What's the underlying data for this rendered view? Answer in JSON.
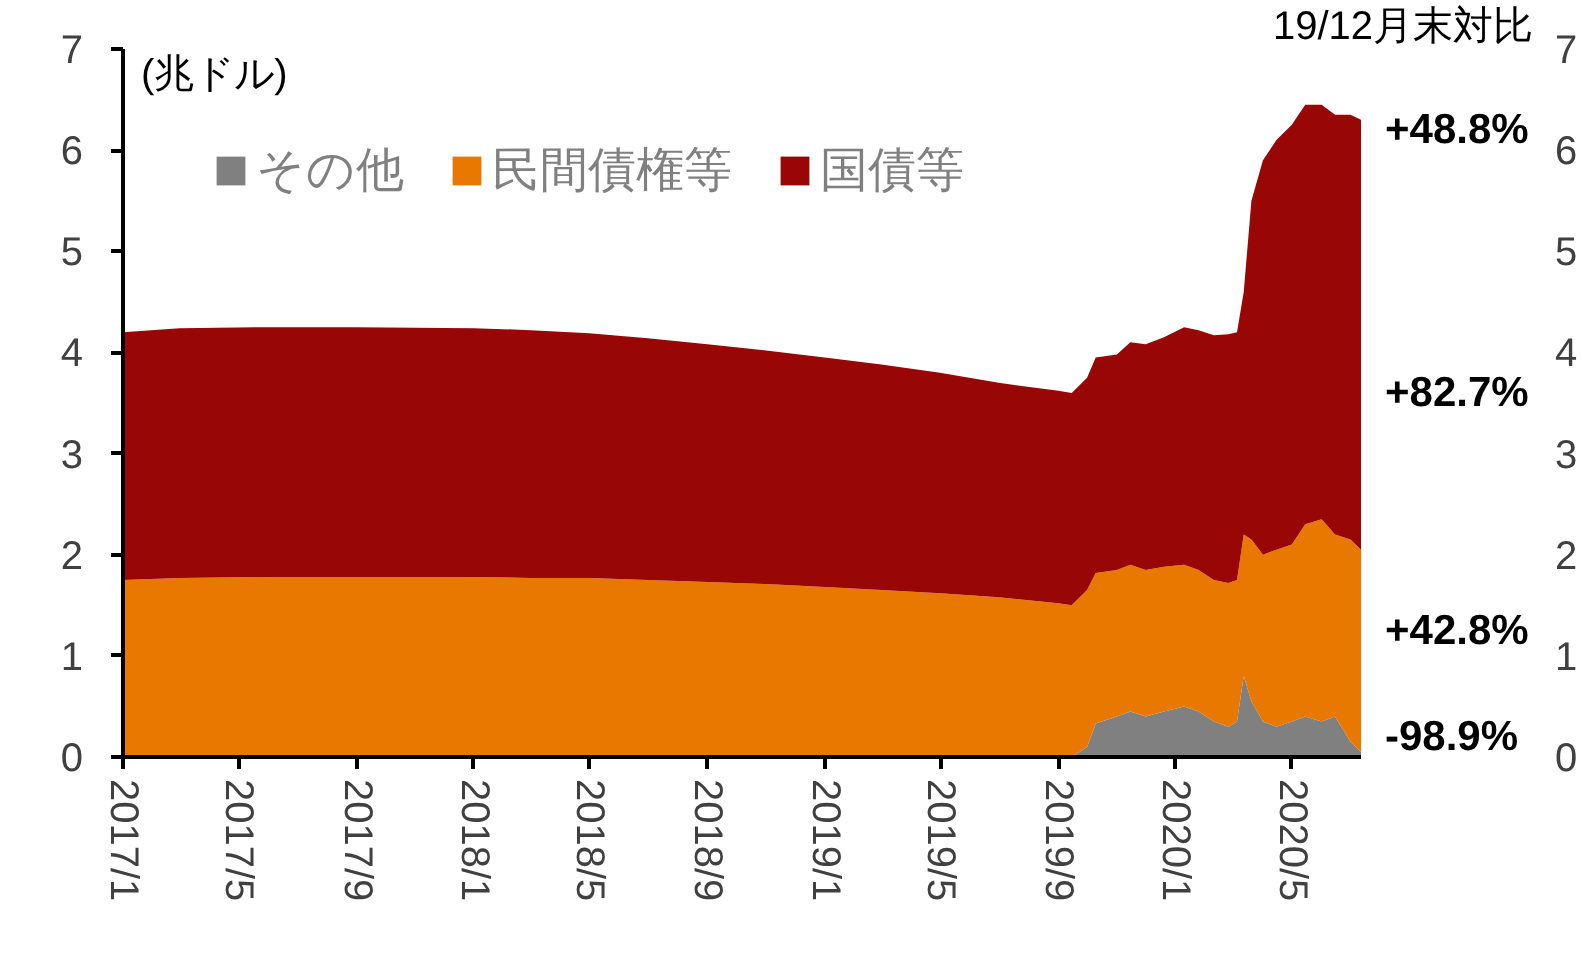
{
  "chart_data": {
    "type": "area",
    "stacked": true,
    "x": [
      "2017-01-01",
      "2017-03-01",
      "2017-06-01",
      "2017-09-01",
      "2018-01-01",
      "2018-03-01",
      "2018-05-01",
      "2018-07-01",
      "2018-09-01",
      "2018-11-01",
      "2019-01-01",
      "2019-03-01",
      "2019-05-01",
      "2019-07-01",
      "2019-09-01",
      "2019-09-15",
      "2019-10-01",
      "2019-10-10",
      "2019-11-01",
      "2019-11-15",
      "2019-12-01",
      "2019-12-20",
      "2020-01-10",
      "2020-01-25",
      "2020-02-10",
      "2020-02-25",
      "2020-03-05",
      "2020-03-12",
      "2020-03-20",
      "2020-04-01",
      "2020-04-15",
      "2020-05-01",
      "2020-05-15",
      "2020-06-01",
      "2020-06-15",
      "2020-07-01",
      "2020-07-12"
    ],
    "series": [
      {
        "name": "その他",
        "color": "#808080",
        "values": [
          0,
          0,
          0,
          0,
          0,
          0,
          0,
          0,
          0,
          0,
          0,
          0,
          0,
          0,
          0,
          0,
          0.1,
          0.33,
          0.4,
          0.45,
          0.4,
          0.45,
          0.5,
          0.45,
          0.35,
          0.3,
          0.35,
          0.8,
          0.55,
          0.35,
          0.3,
          0.35,
          0.4,
          0.35,
          0.4,
          0.15,
          0.05
        ]
      },
      {
        "name": "民間債権等",
        "color": "#e87800",
        "values": [
          1.75,
          1.77,
          1.78,
          1.78,
          1.78,
          1.77,
          1.77,
          1.75,
          1.73,
          1.71,
          1.68,
          1.65,
          1.62,
          1.58,
          1.52,
          1.5,
          1.55,
          1.49,
          1.45,
          1.45,
          1.45,
          1.43,
          1.4,
          1.4,
          1.4,
          1.42,
          1.4,
          1.4,
          1.6,
          1.65,
          1.75,
          1.75,
          1.9,
          2.0,
          1.8,
          2.0,
          2.0
        ]
      },
      {
        "name": "国債等",
        "color": "#990606",
        "values": [
          2.45,
          2.47,
          2.47,
          2.47,
          2.46,
          2.45,
          2.42,
          2.39,
          2.35,
          2.31,
          2.27,
          2.23,
          2.18,
          2.12,
          2.1,
          2.1,
          2.1,
          2.13,
          2.13,
          2.2,
          2.23,
          2.27,
          2.35,
          2.37,
          2.42,
          2.46,
          2.45,
          2.4,
          3.35,
          3.9,
          4.05,
          4.15,
          4.15,
          4.1,
          4.15,
          4.2,
          4.25
        ]
      }
    ],
    "xlim": [
      "2017-01-01",
      "2020-07-12"
    ],
    "xticks": [
      {
        "value": "2017-01-01",
        "label": "2017/1"
      },
      {
        "value": "2017-05-01",
        "label": "2017/5"
      },
      {
        "value": "2017-09-01",
        "label": "2017/9"
      },
      {
        "value": "2018-01-01",
        "label": "2018/1"
      },
      {
        "value": "2018-05-01",
        "label": "2018/5"
      },
      {
        "value": "2018-09-01",
        "label": "2018/9"
      },
      {
        "value": "2019-01-01",
        "label": "2019/1"
      },
      {
        "value": "2019-05-01",
        "label": "2019/5"
      },
      {
        "value": "2019-09-01",
        "label": "2019/9"
      },
      {
        "value": "2020-01-01",
        "label": "2020/1"
      },
      {
        "value": "2020-05-01",
        "label": "2020/5"
      }
    ],
    "ylim": [
      0,
      7
    ],
    "yticks": [
      0,
      1,
      2,
      3,
      4,
      5,
      6,
      7
    ],
    "y2lim": [
      0,
      7
    ],
    "y2ticks": [
      0,
      1,
      2,
      3,
      4,
      5,
      6,
      7
    ],
    "annotations": [
      "(兆ドル)",
      "19/12月末対比",
      {
        "text": "+48.8%",
        "x": "2020-07-12",
        "y": 6.2
      },
      {
        "text": "+82.7%",
        "x": "2020-07-12",
        "y": 3.6
      },
      {
        "text": "+42.8%",
        "x": "2020-07-12",
        "y": 1.25
      },
      {
        "text": "-98.9%",
        "x": "2020-07-12",
        "y": 0.2
      }
    ],
    "grid": false,
    "legend": "top left"
  }
}
